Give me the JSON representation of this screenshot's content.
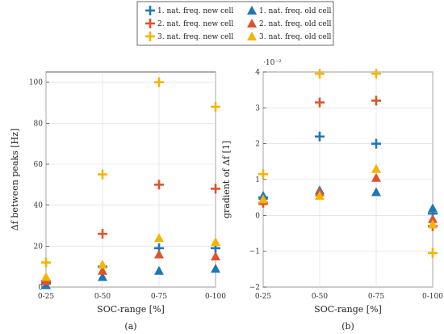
{
  "legend": {
    "entries": [
      {
        "label": "1. nat. freq. new cell",
        "color": "#1f77b4",
        "marker": "plus"
      },
      {
        "label": "1. nat. freq. old cell",
        "color": "#1f77b4",
        "marker": "triangle"
      },
      {
        "label": "2. nat. freq. new cell",
        "color": "#e0532a",
        "marker": "plus"
      },
      {
        "label": "2. nat. freq. old cell",
        "color": "#e0532a",
        "marker": "triangle"
      },
      {
        "label": "3. nat. freq. new cell",
        "color": "#f5b400",
        "marker": "plus"
      },
      {
        "label": "3. nat. freq. old cell",
        "color": "#f5b400",
        "marker": "triangle"
      }
    ]
  },
  "chart_data": [
    {
      "type": "scatter",
      "caption": "(a)",
      "xlabel": "SOC-range [%]",
      "ylabel": "Δf between peaks [Hz]",
      "categories": [
        "0-25",
        "0-50",
        "0-75",
        "0-100"
      ],
      "ylim": [
        0,
        105
      ],
      "yticks": [
        0,
        20,
        40,
        60,
        80,
        100
      ],
      "ytick_labels": [
        "0",
        "20",
        "40",
        "60",
        "80",
        "100"
      ],
      "y_multiplier": "",
      "grid": true,
      "series": [
        {
          "name": "1. nat. freq. new cell",
          "marker": "plus",
          "color": "#1f77b4",
          "values": [
            2,
            10,
            19,
            19
          ]
        },
        {
          "name": "2. nat. freq. new cell",
          "marker": "plus",
          "color": "#e0532a",
          "values": [
            3,
            26,
            50,
            48
          ]
        },
        {
          "name": "3. nat. freq. new cell",
          "marker": "plus",
          "color": "#f5b400",
          "values": [
            12,
            55,
            100,
            88
          ]
        },
        {
          "name": "1. nat. freq. old cell",
          "marker": "triangle",
          "color": "#1f77b4",
          "values": [
            1,
            5,
            8,
            9
          ]
        },
        {
          "name": "2. nat. freq. old cell",
          "marker": "triangle",
          "color": "#e0532a",
          "values": [
            3,
            8,
            16,
            15
          ]
        },
        {
          "name": "3. nat. freq. old cell",
          "marker": "triangle",
          "color": "#f5b400",
          "values": [
            5,
            11,
            24,
            22
          ]
        }
      ]
    },
    {
      "type": "scatter",
      "caption": "(b)",
      "xlabel": "SOC-range [%]",
      "ylabel": "gradient of Δf [1]",
      "categories": [
        "0-25",
        "0-50",
        "0-75",
        "0-100"
      ],
      "ylim": [
        -2,
        4
      ],
      "yticks": [
        -2,
        -1,
        0,
        1,
        2,
        3,
        4
      ],
      "ytick_labels": [
        "−2",
        "−1",
        "0",
        "1",
        "2",
        "3",
        "4"
      ],
      "y_multiplier": "·10⁻²",
      "grid": true,
      "series": [
        {
          "name": "1. nat. freq. new cell",
          "marker": "plus",
          "color": "#1f77b4",
          "values": [
            0.5,
            2.2,
            2.0,
            0.05
          ]
        },
        {
          "name": "2. nat. freq. new cell",
          "marker": "plus",
          "color": "#e0532a",
          "values": [
            0.35,
            3.15,
            3.2,
            -0.3
          ]
        },
        {
          "name": "3. nat. freq. new cell",
          "marker": "plus",
          "color": "#f5b400",
          "values": [
            1.15,
            3.95,
            3.95,
            -1.05
          ]
        },
        {
          "name": "1. nat. freq. old cell",
          "marker": "triangle",
          "color": "#1f77b4",
          "values": [
            0.55,
            0.7,
            0.65,
            0.2
          ]
        },
        {
          "name": "2. nat. freq. old cell",
          "marker": "triangle",
          "color": "#e0532a",
          "values": [
            0.4,
            0.65,
            1.05,
            -0.1
          ]
        },
        {
          "name": "3. nat. freq. old cell",
          "marker": "triangle",
          "color": "#f5b400",
          "values": [
            0.45,
            0.55,
            1.3,
            -0.25
          ]
        }
      ]
    }
  ]
}
